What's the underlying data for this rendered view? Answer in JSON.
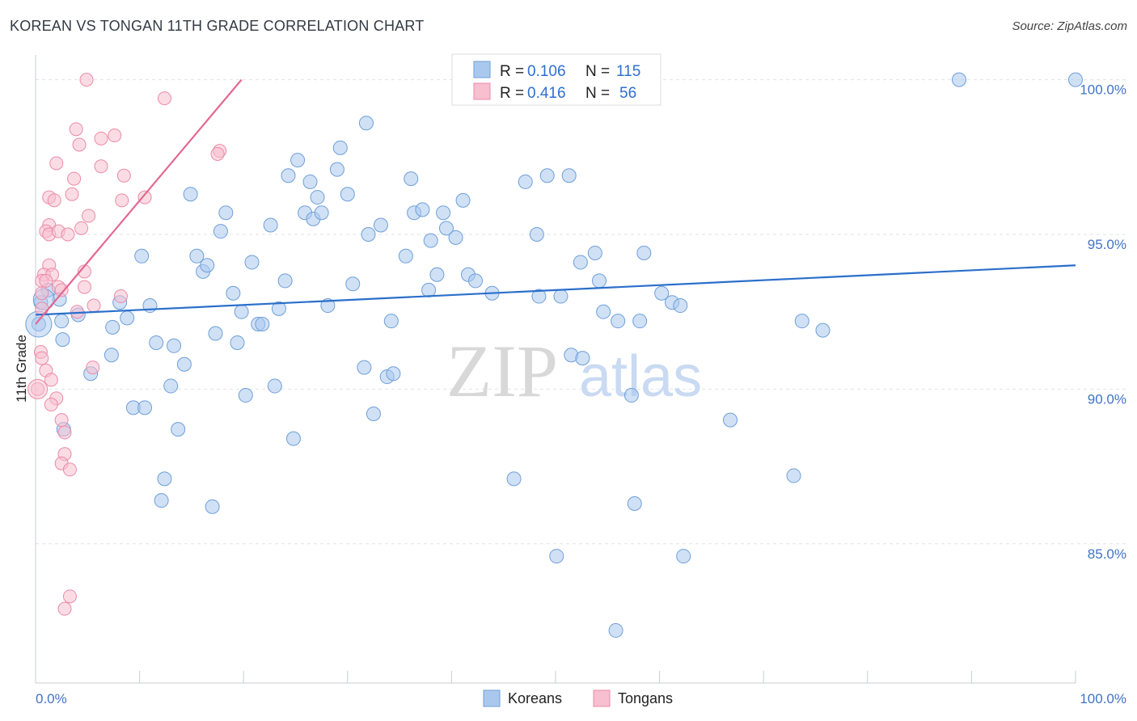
{
  "title": "KOREAN VS TONGAN 11TH GRADE CORRELATION CHART",
  "source": "Source: ZipAtlas.com",
  "watermark": {
    "zip": "ZIP",
    "atlas": "atlas"
  },
  "legend_top": [
    {
      "series": "Koreans",
      "r_label": "R =",
      "r_value": "0.106",
      "n_label": "N =",
      "n_value": "115"
    },
    {
      "series": "Tongans",
      "r_label": "R =",
      "r_value": "0.416",
      "n_label": "N =",
      "n_value": "56"
    }
  ],
  "colors": {
    "koreans_fill": "#aac8ee",
    "koreans_stroke": "#6f9fd8",
    "koreans_line": "#2a6fcb",
    "tongans_fill": "#f7bfd0",
    "tongans_stroke": "#ec8aa8",
    "tongans_line": "#e36893",
    "grid": "#dde3ea",
    "tick_text": "#4472c4"
  },
  "chart_data": {
    "type": "scatter",
    "title": "KOREAN VS TONGAN 11TH GRADE CORRELATION CHART",
    "xlabel": "",
    "ylabel": "11th Grade",
    "xlim": [
      0,
      100
    ],
    "ylim": [
      80.5,
      100.8
    ],
    "x_tick_labels": [
      "0.0%",
      "100.0%"
    ],
    "y_ticks": [
      85,
      90,
      95,
      100
    ],
    "y_tick_labels": [
      "85.0%",
      "90.0%",
      "95.0%",
      "100.0%"
    ],
    "grid": true,
    "legend": [
      "Koreans",
      "Tongans"
    ],
    "series": [
      {
        "name": "Koreans",
        "trend": {
          "x": [
            0,
            100
          ],
          "y": [
            92.4,
            94.0
          ]
        },
        "points": [
          [
            0.3,
            92.1
          ],
          [
            0.5,
            92.8
          ],
          [
            1.2,
            93.2
          ],
          [
            2.3,
            92.9
          ],
          [
            2.5,
            92.2
          ],
          [
            4.1,
            92.4
          ],
          [
            2.7,
            88.7
          ],
          [
            2.6,
            91.6
          ],
          [
            5.3,
            90.5
          ],
          [
            7.4,
            92.0
          ],
          [
            8.1,
            92.8
          ],
          [
            8.8,
            92.3
          ],
          [
            7.3,
            91.1
          ],
          [
            9.4,
            89.4
          ],
          [
            10.5,
            89.4
          ],
          [
            10.2,
            94.3
          ],
          [
            11.0,
            92.7
          ],
          [
            11.6,
            91.5
          ],
          [
            12.4,
            87.1
          ],
          [
            12.1,
            86.4
          ],
          [
            13.0,
            90.1
          ],
          [
            13.3,
            91.4
          ],
          [
            13.7,
            88.7
          ],
          [
            14.3,
            90.8
          ],
          [
            14.9,
            96.3
          ],
          [
            15.5,
            94.3
          ],
          [
            16.1,
            93.8
          ],
          [
            16.5,
            94.0
          ],
          [
            17.0,
            86.2
          ],
          [
            17.3,
            91.8
          ],
          [
            17.8,
            95.1
          ],
          [
            18.3,
            95.7
          ],
          [
            19.0,
            93.1
          ],
          [
            19.4,
            91.5
          ],
          [
            19.8,
            92.5
          ],
          [
            20.2,
            89.8
          ],
          [
            20.8,
            94.1
          ],
          [
            21.4,
            92.1
          ],
          [
            21.8,
            92.1
          ],
          [
            22.6,
            95.3
          ],
          [
            23.0,
            90.1
          ],
          [
            23.4,
            92.6
          ],
          [
            24.0,
            93.5
          ],
          [
            24.3,
            96.9
          ],
          [
            24.8,
            88.4
          ],
          [
            25.2,
            97.4
          ],
          [
            25.9,
            95.7
          ],
          [
            26.4,
            96.7
          ],
          [
            26.7,
            95.5
          ],
          [
            27.1,
            96.2
          ],
          [
            27.5,
            95.7
          ],
          [
            28.1,
            92.7
          ],
          [
            29.0,
            97.1
          ],
          [
            29.3,
            97.8
          ],
          [
            30.0,
            96.3
          ],
          [
            30.5,
            93.4
          ],
          [
            31.6,
            90.7
          ],
          [
            32.0,
            95.0
          ],
          [
            32.5,
            89.2
          ],
          [
            33.2,
            95.3
          ],
          [
            31.8,
            98.6
          ],
          [
            33.8,
            90.4
          ],
          [
            34.4,
            90.5
          ],
          [
            34.2,
            92.2
          ],
          [
            35.6,
            94.3
          ],
          [
            36.1,
            96.8
          ],
          [
            36.4,
            95.7
          ],
          [
            37.2,
            95.8
          ],
          [
            37.8,
            93.2
          ],
          [
            38.0,
            94.8
          ],
          [
            38.6,
            93.7
          ],
          [
            39.2,
            95.7
          ],
          [
            39.5,
            95.2
          ],
          [
            40.4,
            94.9
          ],
          [
            41.1,
            96.1
          ],
          [
            41.6,
            93.7
          ],
          [
            42.3,
            93.5
          ],
          [
            43.9,
            93.1
          ],
          [
            46.0,
            87.1
          ],
          [
            47.1,
            96.7
          ],
          [
            48.2,
            95.0
          ],
          [
            48.4,
            93.0
          ],
          [
            49.2,
            96.9
          ],
          [
            50.1,
            84.6
          ],
          [
            50.5,
            93.0
          ],
          [
            51.3,
            96.9
          ],
          [
            51.5,
            91.1
          ],
          [
            52.4,
            94.1
          ],
          [
            52.6,
            91.0
          ],
          [
            53.8,
            94.4
          ],
          [
            54.2,
            93.5
          ],
          [
            54.6,
            92.5
          ],
          [
            55.8,
            82.2
          ],
          [
            56.0,
            92.2
          ],
          [
            57.3,
            89.8
          ],
          [
            57.6,
            86.3
          ],
          [
            58.1,
            92.2
          ],
          [
            58.5,
            94.4
          ],
          [
            60.2,
            93.1
          ],
          [
            61.2,
            92.8
          ],
          [
            62.0,
            92.7
          ],
          [
            62.3,
            84.6
          ],
          [
            66.8,
            89.0
          ],
          [
            72.9,
            87.2
          ],
          [
            73.7,
            92.2
          ],
          [
            75.7,
            91.9
          ],
          [
            88.8,
            100.0
          ],
          [
            100.0,
            100.0
          ]
        ]
      },
      {
        "name": "Tongans",
        "trend": {
          "x": [
            0,
            19.8
          ],
          "y": [
            92.1,
            100.0
          ]
        },
        "points": [
          [
            4.9,
            100.0
          ],
          [
            12.4,
            99.4
          ],
          [
            3.9,
            98.4
          ],
          [
            7.6,
            98.2
          ],
          [
            6.3,
            98.1
          ],
          [
            4.2,
            97.9
          ],
          [
            17.7,
            97.7
          ],
          [
            17.5,
            97.6
          ],
          [
            2.0,
            97.3
          ],
          [
            6.3,
            97.2
          ],
          [
            8.5,
            96.9
          ],
          [
            3.7,
            96.8
          ],
          [
            3.5,
            96.3
          ],
          [
            1.3,
            96.2
          ],
          [
            1.8,
            96.1
          ],
          [
            8.3,
            96.1
          ],
          [
            10.5,
            96.2
          ],
          [
            5.1,
            95.6
          ],
          [
            1.3,
            95.3
          ],
          [
            1.0,
            95.1
          ],
          [
            1.3,
            95.0
          ],
          [
            2.2,
            95.1
          ],
          [
            3.1,
            95.0
          ],
          [
            4.4,
            95.2
          ],
          [
            1.3,
            94.0
          ],
          [
            0.8,
            93.7
          ],
          [
            1.6,
            93.7
          ],
          [
            4.7,
            93.8
          ],
          [
            0.6,
            93.5
          ],
          [
            1.0,
            93.5
          ],
          [
            2.2,
            93.3
          ],
          [
            2.5,
            93.2
          ],
          [
            4.7,
            93.3
          ],
          [
            8.2,
            93.0
          ],
          [
            0.6,
            93.1
          ],
          [
            0.6,
            92.6
          ],
          [
            5.6,
            92.7
          ],
          [
            4.0,
            92.5
          ],
          [
            0.5,
            91.2
          ],
          [
            0.6,
            91.0
          ],
          [
            1.0,
            90.6
          ],
          [
            5.5,
            90.7
          ],
          [
            0.2,
            90.0
          ],
          [
            1.5,
            90.3
          ],
          [
            2.0,
            89.7
          ],
          [
            1.5,
            89.5
          ],
          [
            2.5,
            89.0
          ],
          [
            2.8,
            88.6
          ],
          [
            2.8,
            87.9
          ],
          [
            2.5,
            87.6
          ],
          [
            3.3,
            87.4
          ],
          [
            3.3,
            83.3
          ],
          [
            2.8,
            82.9
          ]
        ]
      }
    ]
  },
  "legend_bottom": [
    {
      "label": "Koreans"
    },
    {
      "label": "Tongans"
    }
  ]
}
